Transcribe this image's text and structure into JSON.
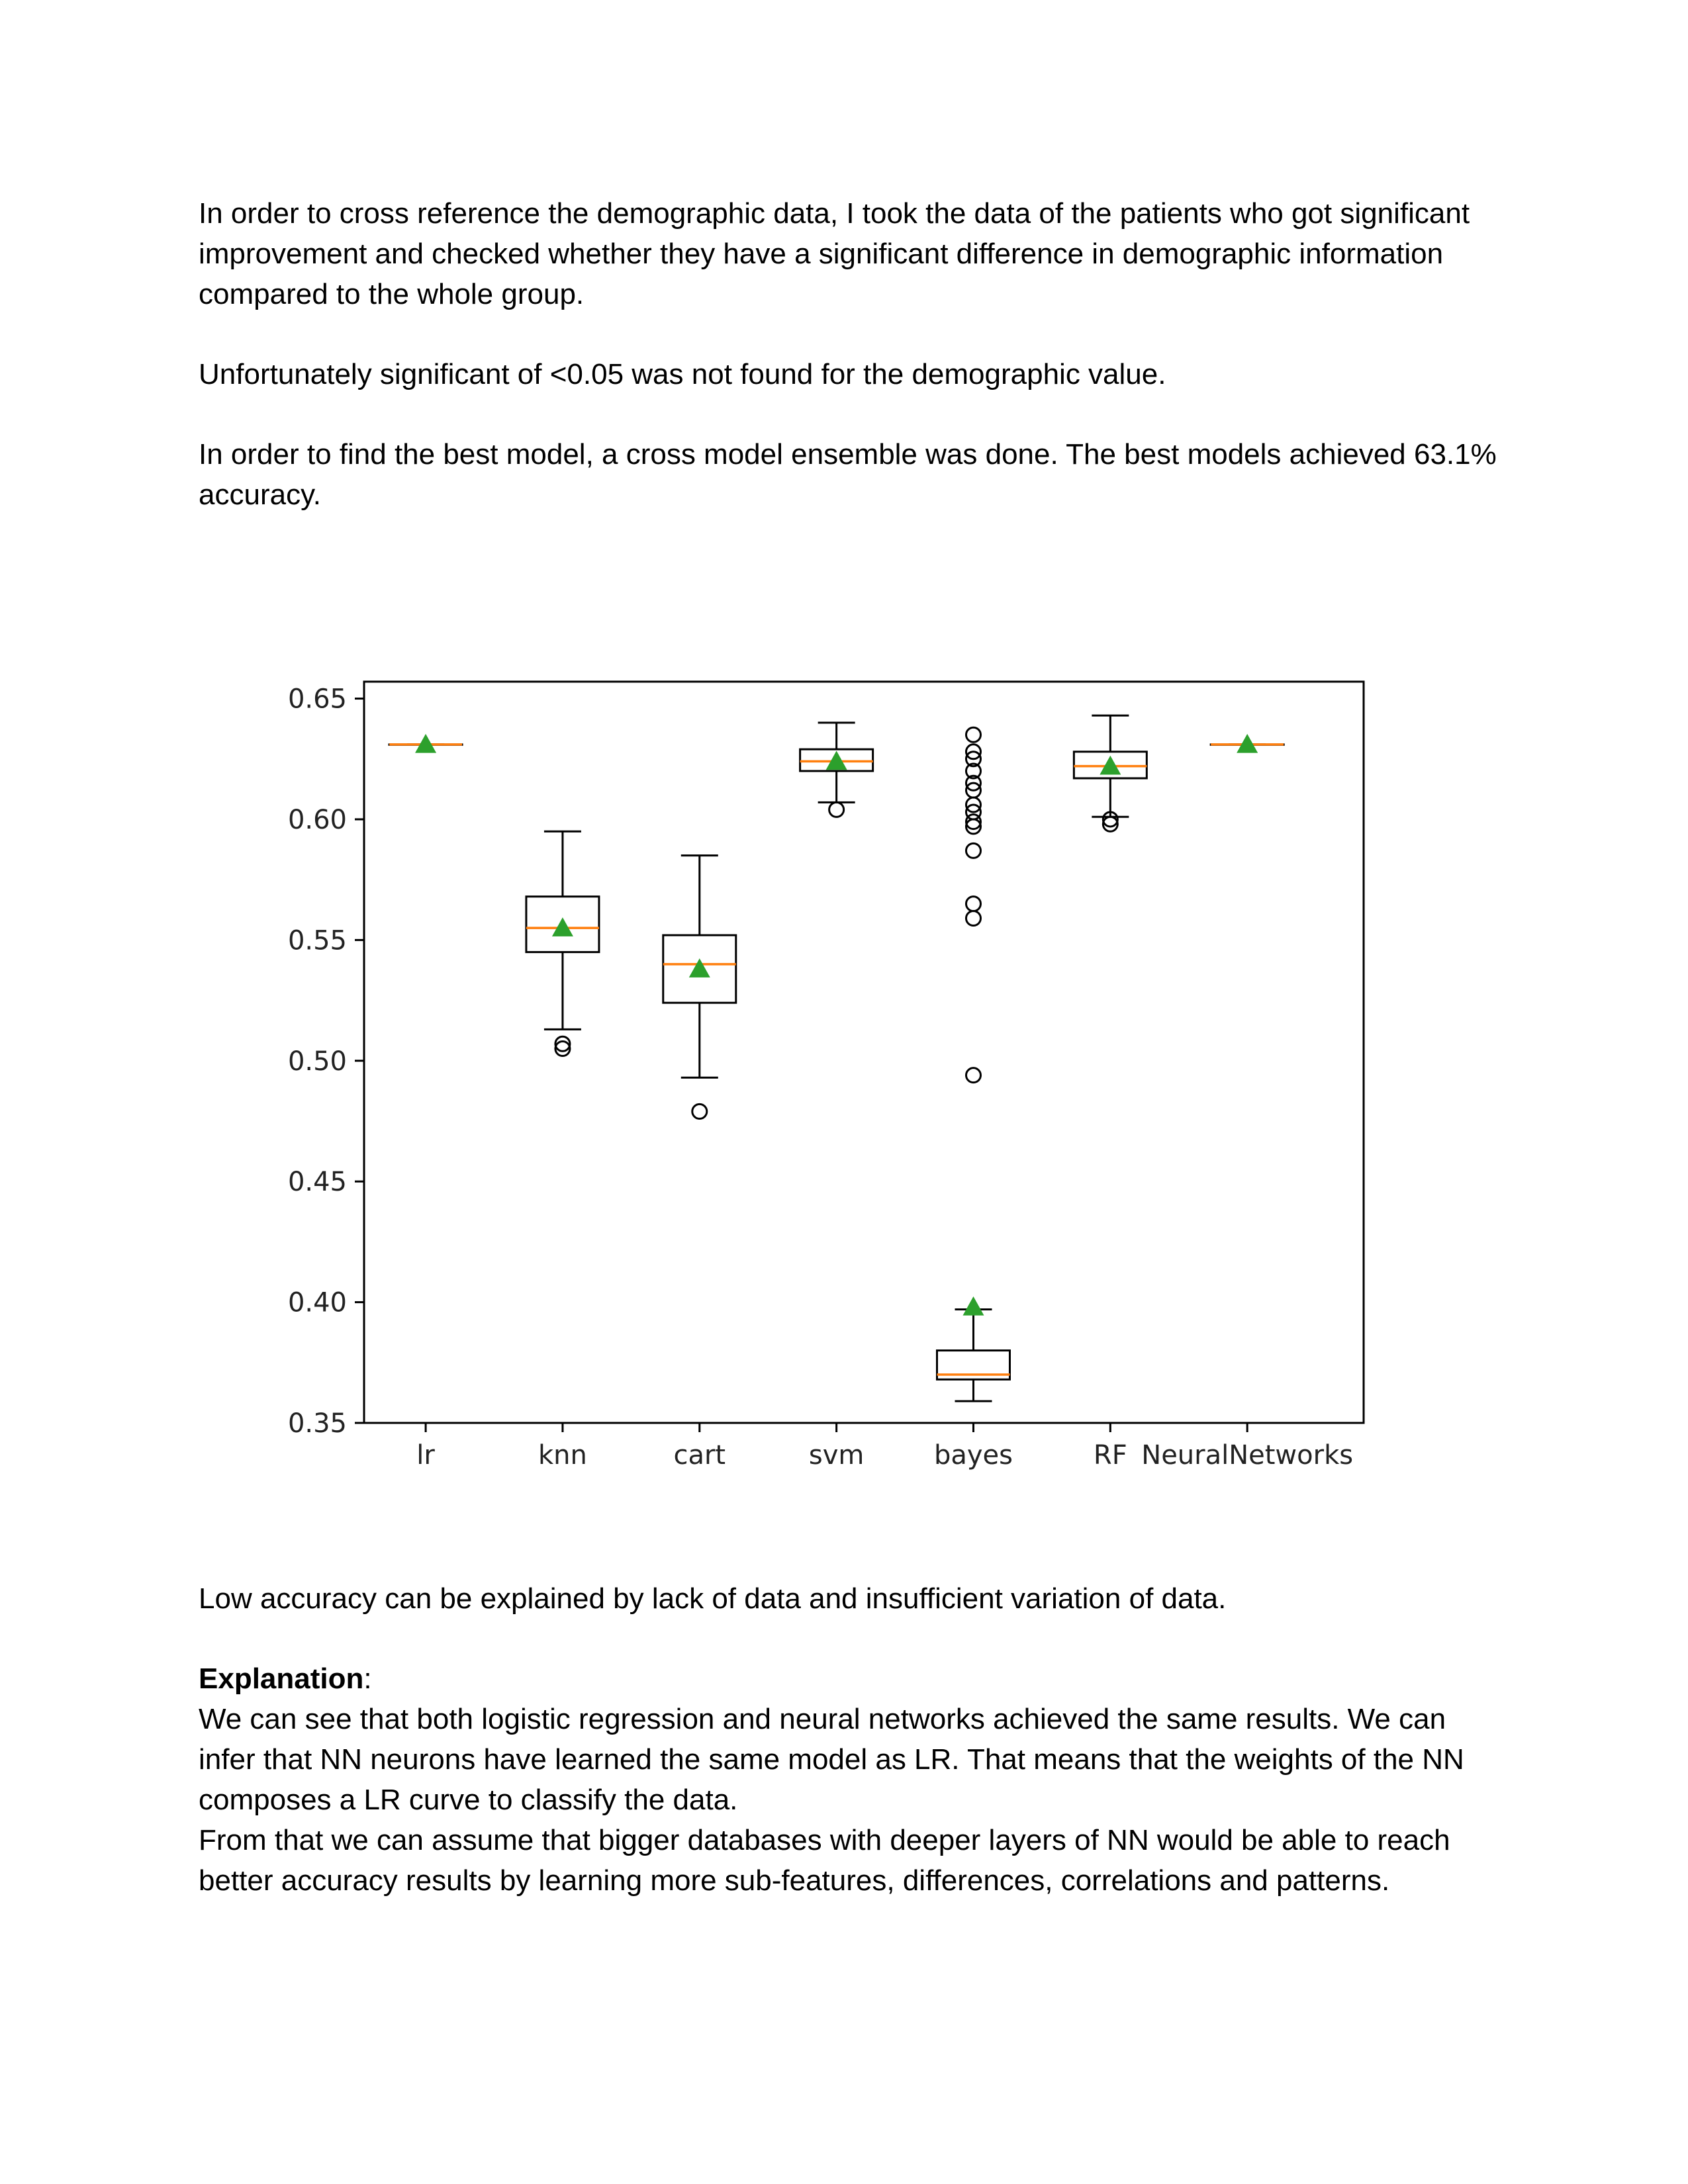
{
  "document": {
    "para1": "In order to cross reference the demographic data, I took the data of the patients who got significant improvement and checked whether they have a significant difference in demographic information compared to the whole group.",
    "para2": "Unfortunately significant of <0.05 was not found for the demographic value.",
    "para3": "In order to find the best model, a cross model ensemble was done. The best models achieved 63.1% accuracy.",
    "para4": "Low accuracy can be explained by lack of data and insufficient variation of data.",
    "explanation_heading": "Explanation",
    "explanation_colon": ":",
    "explanation_body1": "We can see that both logistic regression and neural networks achieved the same results. We can infer that NN neurons have learned the same model as LR. That means that the weights of the NN composes a LR curve to classify the data.",
    "explanation_body2": "From that we can assume that bigger databases with deeper layers of NN would be able to reach better accuracy results by learning more sub-features, differences, correlations and patterns."
  },
  "chart_data": {
    "type": "box",
    "title": "",
    "xlabel": "",
    "ylabel": "",
    "ylim": [
      0.35,
      0.657
    ],
    "yticks": [
      0.35,
      0.4,
      0.45,
      0.5,
      0.55,
      0.6,
      0.65
    ],
    "ytick_labels": [
      "0.35",
      "0.40",
      "0.45",
      "0.50",
      "0.55",
      "0.60",
      "0.65"
    ],
    "grid": false,
    "colors": {
      "box": "#000000",
      "median": "#ff7f0e",
      "mean": "#2ca02c",
      "flier": "#000000"
    },
    "categories": [
      "lr",
      "knn",
      "cart",
      "svm",
      "bayes",
      "RF",
      "NeuralNetworks"
    ],
    "boxes": [
      {
        "name": "lr",
        "whisker_low": 0.631,
        "q1": 0.631,
        "median": 0.631,
        "q3": 0.631,
        "whisker_high": 0.631,
        "mean": 0.631,
        "fliers": []
      },
      {
        "name": "knn",
        "whisker_low": 0.513,
        "q1": 0.545,
        "median": 0.555,
        "q3": 0.568,
        "whisker_high": 0.595,
        "mean": 0.555,
        "fliers": [
          0.505,
          0.507
        ]
      },
      {
        "name": "cart",
        "whisker_low": 0.493,
        "q1": 0.524,
        "median": 0.54,
        "q3": 0.552,
        "whisker_high": 0.585,
        "mean": 0.538,
        "fliers": [
          0.479
        ]
      },
      {
        "name": "svm",
        "whisker_low": 0.607,
        "q1": 0.62,
        "median": 0.624,
        "q3": 0.629,
        "whisker_high": 0.64,
        "mean": 0.624,
        "fliers": [
          0.604
        ]
      },
      {
        "name": "bayes",
        "whisker_low": 0.359,
        "q1": 0.368,
        "median": 0.37,
        "q3": 0.38,
        "whisker_high": 0.397,
        "mean": 0.398,
        "fliers": [
          0.494,
          0.559,
          0.565,
          0.587,
          0.597,
          0.599,
          0.603,
          0.606,
          0.612,
          0.615,
          0.62,
          0.625,
          0.628,
          0.635
        ]
      },
      {
        "name": "RF",
        "whisker_low": 0.601,
        "q1": 0.617,
        "median": 0.622,
        "q3": 0.628,
        "whisker_high": 0.643,
        "mean": 0.622,
        "fliers": [
          0.598,
          0.6
        ]
      },
      {
        "name": "NeuralNetworks",
        "whisker_low": 0.631,
        "q1": 0.631,
        "median": 0.631,
        "q3": 0.631,
        "whisker_high": 0.631,
        "mean": 0.631,
        "fliers": []
      }
    ]
  }
}
